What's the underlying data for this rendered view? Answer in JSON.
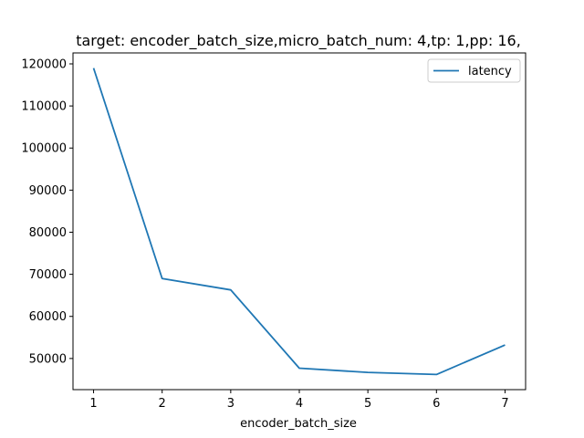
{
  "chart_data": {
    "type": "line",
    "title": "target: encoder_batch_size,micro_batch_num: 4,tp: 1,pp: 16,",
    "xlabel": "encoder_batch_size",
    "ylabel": "",
    "x": [
      1,
      2,
      3,
      4,
      5,
      6,
      7
    ],
    "series": [
      {
        "name": "latency",
        "color": "#1f77b4",
        "values": [
          119000,
          69000,
          66300,
          47700,
          46700,
          46200,
          53200
        ]
      }
    ],
    "xlim": [
      0.7,
      7.3
    ],
    "ylim": [
      42600,
      122600
    ],
    "xticks": [
      1,
      2,
      3,
      4,
      5,
      6,
      7
    ],
    "yticks": [
      50000,
      60000,
      70000,
      80000,
      90000,
      100000,
      110000,
      120000
    ],
    "grid": false,
    "legend_position": "top-right"
  }
}
